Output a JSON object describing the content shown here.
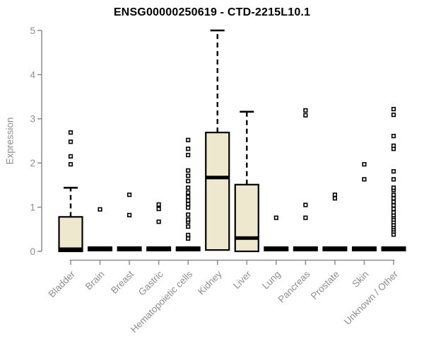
{
  "chart_data": {
    "type": "boxplot",
    "title": "ENSG00000250619 - CTD-2215L10.1",
    "ylabel": "Expression",
    "xlabel": "",
    "ylim": [
      0,
      5
    ],
    "yticks": [
      0,
      1,
      2,
      3,
      4,
      5
    ],
    "ytick_labels": [
      "0",
      "1",
      "2",
      "3",
      "4",
      "5"
    ],
    "grid": "off",
    "legend": "none",
    "categories": [
      "Bladder",
      "Brain",
      "Breast",
      "Gastric",
      "Hematopoietic cells",
      "Kidney",
      "Liver",
      "Lung",
      "Pancreas",
      "Prostate",
      "Skin",
      "Unknown / Other"
    ],
    "series": [
      {
        "category": "Bladder",
        "q1": 0,
        "median": 0,
        "q3": 0.78,
        "whisker_low": 0,
        "whisker_high": 1.44,
        "outliers": [
          1.97,
          2.15,
          2.48,
          2.69
        ]
      },
      {
        "category": "Brain",
        "q1": 0,
        "median": 0,
        "q3": 0,
        "whisker_low": 0,
        "whisker_high": 0,
        "outliers": [
          0.95
        ]
      },
      {
        "category": "Breast",
        "q1": 0,
        "median": 0,
        "q3": 0,
        "whisker_low": 0,
        "whisker_high": 0,
        "outliers": [
          0.82,
          1.28
        ]
      },
      {
        "category": "Gastric",
        "q1": 0,
        "median": 0,
        "q3": 0,
        "whisker_low": 0,
        "whisker_high": 0,
        "outliers": [
          0.67,
          0.96,
          1.06
        ]
      },
      {
        "category": "Hematopoietic cells",
        "q1": 0,
        "median": 0,
        "q3": 0,
        "whisker_low": 0,
        "whisker_high": 0,
        "outliers": [
          0.29,
          0.37,
          0.56,
          0.67,
          0.72,
          0.83,
          0.99,
          1.07,
          1.15,
          1.23,
          1.33,
          1.44,
          1.59,
          1.71,
          1.83,
          2.18,
          2.32,
          2.52
        ]
      },
      {
        "category": "Kidney",
        "q1": 0.03,
        "median": 1.67,
        "q3": 2.69,
        "whisker_low": 0,
        "whisker_high": 5.0,
        "outliers": []
      },
      {
        "category": "Liver",
        "q1": 0,
        "median": 0.3,
        "q3": 1.51,
        "whisker_low": 0,
        "whisker_high": 3.16,
        "outliers": []
      },
      {
        "category": "Lung",
        "q1": 0,
        "median": 0,
        "q3": 0,
        "whisker_low": 0,
        "whisker_high": 0,
        "outliers": [
          0.76
        ]
      },
      {
        "category": "Pancreas",
        "q1": 0,
        "median": 0,
        "q3": 0,
        "whisker_low": 0,
        "whisker_high": 0,
        "outliers": [
          0.76,
          1.05,
          3.08,
          3.19
        ]
      },
      {
        "category": "Prostate",
        "q1": 0,
        "median": 0,
        "q3": 0,
        "whisker_low": 0,
        "whisker_high": 0,
        "outliers": [
          1.2,
          1.28
        ]
      },
      {
        "category": "Skin",
        "q1": 0,
        "median": 0,
        "q3": 0,
        "whisker_low": 0,
        "whisker_high": 0,
        "outliers": [
          1.63,
          1.97
        ]
      },
      {
        "category": "Unknown / Other",
        "q1": 0,
        "median": 0,
        "q3": 0,
        "whisker_low": 0,
        "whisker_high": 0,
        "outliers": [
          0.38,
          0.45,
          0.5,
          0.55,
          0.6,
          0.66,
          0.72,
          0.78,
          0.82,
          0.88,
          0.96,
          1.04,
          1.12,
          1.2,
          1.28,
          1.39,
          1.44,
          1.63,
          1.81,
          2.32,
          2.39,
          2.61,
          3.09,
          3.22
        ]
      }
    ],
    "colors": {
      "box_fill": "#EDE8CE",
      "box_stroke": "#000000",
      "median": "#000000",
      "whisker": "#000000",
      "outlier_stroke": "#000000",
      "outlier_fill": "#ffffff",
      "axis": "#8d8d8d",
      "tick_text": "#8d8d8d",
      "title_text": "#000000",
      "background": "#ffffff"
    }
  }
}
